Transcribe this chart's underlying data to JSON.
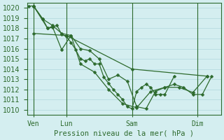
{
  "background_color": "#d4eef0",
  "grid_color": "#b0d8dc",
  "line_color": "#2d6a2d",
  "marker_color": "#2d6a2d",
  "text_color": "#2d6a2d",
  "xlabel": "Pression niveau de la mer( hPa )",
  "ylim": [
    1009.5,
    1020.5
  ],
  "yticks": [
    1010,
    1011,
    1012,
    1013,
    1014,
    1015,
    1016,
    1017,
    1018,
    1019,
    1020
  ],
  "day_positions": [
    0.5,
    4.0,
    11.0,
    18.0
  ],
  "day_labels": [
    "Ven",
    "Lun",
    "Sam",
    "Dim"
  ],
  "vline_positions": [
    0.5,
    4.0,
    11.0,
    18.0
  ],
  "xlim": [
    -0.2,
    20.5
  ],
  "series": [
    {
      "x": [
        0.0,
        0.5,
        1.5,
        2.0,
        2.5,
        3.0,
        3.5,
        4.0,
        4.5,
        5.0,
        5.5,
        6.0,
        6.5,
        7.0,
        7.5,
        8.0,
        8.5,
        9.0,
        9.5,
        10.0,
        10.5,
        11.0,
        11.5,
        12.0,
        12.5,
        13.0,
        13.5,
        14.0,
        14.5,
        15.5
      ],
      "y": [
        1020.2,
        1020.2,
        1018.9,
        1018.0,
        1018.1,
        1018.3,
        1017.4,
        1017.2,
        1016.6,
        1015.9,
        1015.0,
        1014.8,
        1015.0,
        1014.5,
        1014.5,
        1013.2,
        1012.6,
        1012.0,
        1011.5,
        1011.0,
        1010.3,
        1010.1,
        1011.8,
        1012.2,
        1012.5,
        1012.2,
        1011.5,
        1011.5,
        1011.5,
        1013.3
      ]
    },
    {
      "x": [
        0.5,
        1.5,
        2.5,
        3.5,
        4.5,
        5.5,
        6.5,
        7.5,
        8.5,
        9.5,
        10.5,
        11.5,
        12.5,
        13.5,
        14.5,
        15.5,
        16.5,
        17.5,
        18.5,
        19.5
      ],
      "y": [
        1020.2,
        1018.9,
        1018.3,
        1017.5,
        1017.3,
        1016.0,
        1015.8,
        1015.0,
        1013.0,
        1013.4,
        1012.8,
        1010.3,
        1010.1,
        1011.8,
        1012.2,
        1012.5,
        1012.2,
        1011.5,
        1011.5,
        1013.3
      ]
    },
    {
      "x": [
        0.5,
        2.0,
        2.5,
        3.5,
        4.5,
        5.5,
        7.0,
        8.5,
        10.0,
        11.5,
        13.0,
        14.5,
        16.0,
        17.5,
        19.0
      ],
      "y": [
        1020.2,
        1018.0,
        1018.2,
        1015.9,
        1017.3,
        1014.5,
        1013.7,
        1012.0,
        1010.6,
        1010.2,
        1011.8,
        1012.2,
        1012.2,
        1011.7,
        1013.3
      ]
    },
    {
      "x": [
        0.5,
        4.0,
        11.0,
        19.0
      ],
      "y": [
        1017.5,
        1017.3,
        1014.0,
        1013.3
      ]
    }
  ]
}
